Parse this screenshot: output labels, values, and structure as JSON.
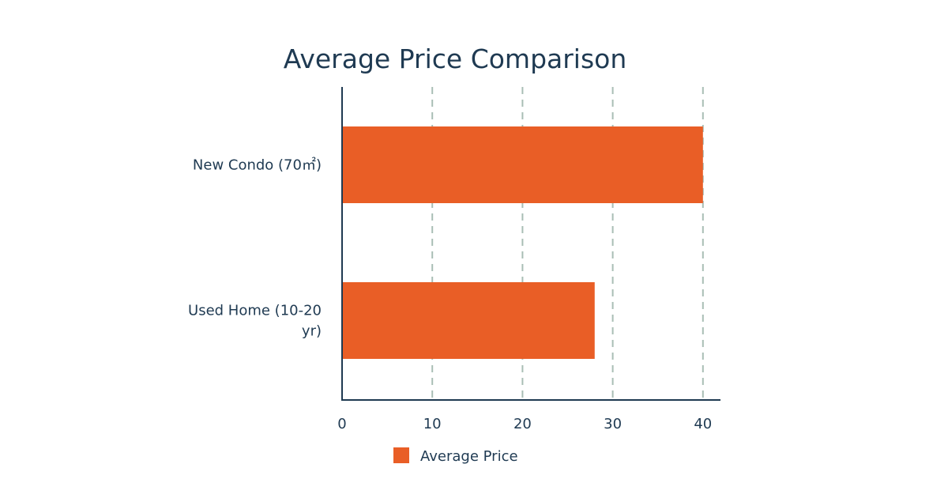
{
  "chart_data": {
    "type": "bar",
    "orientation": "horizontal",
    "title": "Average Price Comparison",
    "categories": [
      [
        "New Condo (70㎡)"
      ],
      [
        "Used Home (10-20",
        "yr)"
      ]
    ],
    "series": [
      {
        "name": "Average Price",
        "values": [
          40,
          28
        ],
        "color": "#e95e26"
      }
    ],
    "xlabel": "",
    "ylabel": "",
    "xlim": [
      0,
      42
    ],
    "ticks": [
      0,
      10,
      20,
      30,
      40
    ],
    "grid": true,
    "legend": "bottom"
  },
  "colors": {
    "text": "#1f3a52",
    "axis": "#1f3a52",
    "grid": "#a9beb5",
    "background": "#ffffff"
  }
}
